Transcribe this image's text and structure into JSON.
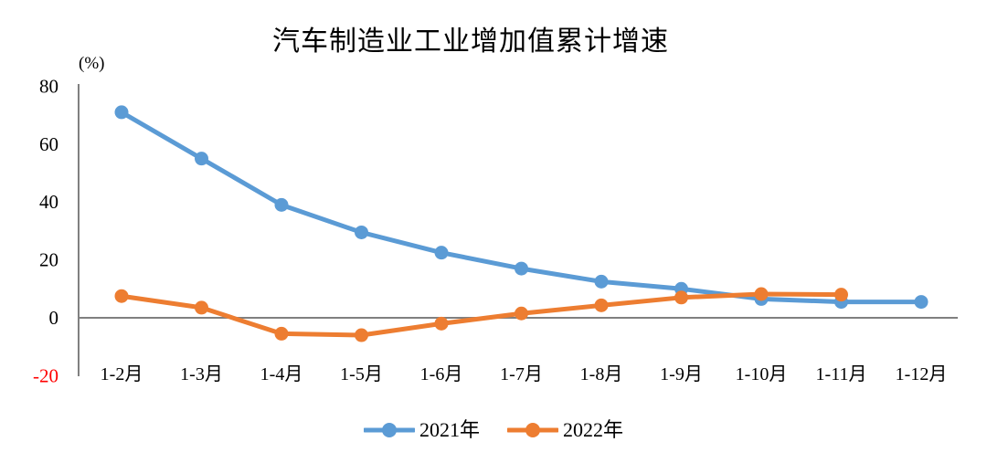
{
  "chart_data": {
    "type": "line",
    "title": "汽车制造业工业增加值累计增速",
    "unit_label": "(%)",
    "categories": [
      "1-2月",
      "1-3月",
      "1-4月",
      "1-5月",
      "1-6月",
      "1-7月",
      "1-8月",
      "1-9月",
      "1-10月",
      "1-11月",
      "1-12月"
    ],
    "series": [
      {
        "name": "2021年",
        "color": "#5B9BD5",
        "values": [
          71,
          55,
          39,
          29.5,
          22.5,
          17,
          12.5,
          10,
          6.5,
          5.5,
          5.5
        ]
      },
      {
        "name": "2022年",
        "color": "#ED7D31",
        "values": [
          7.5,
          3.5,
          -5.5,
          -6,
          -2,
          1.5,
          4.3,
          7,
          8.2,
          8,
          null
        ]
      }
    ],
    "y_ticks": [
      80,
      60,
      40,
      20,
      0,
      -20
    ],
    "ylim": [
      -20,
      80
    ],
    "axis_color": "#808080",
    "tick_label_color": "#000000",
    "negative_tick_color": "#FF0000",
    "legend_position": "bottom",
    "grid": false,
    "zero_line": true
  }
}
